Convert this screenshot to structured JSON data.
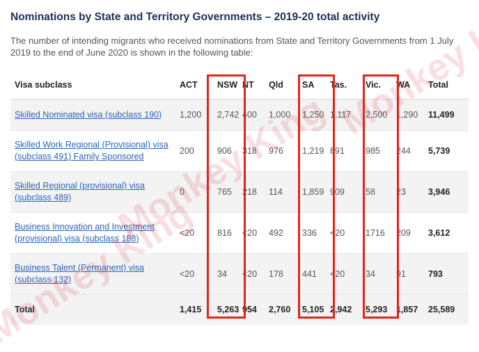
{
  "title": "Nominations by State and Territory Governments – 2019-20 total activity",
  "intro": "The number of intending migrants who received nominations from State and Territory Governments from 1 July 2019 to the end of June 2020 is shown in the following table:",
  "table": {
    "headers": {
      "visa": "Visa subclass",
      "act": "ACT",
      "nsw": "NSW",
      "nt": "NT",
      "qld": "Qld",
      "sa": "SA",
      "tas": "Tas.",
      "vic": "Vic.",
      "wa": "WA",
      "total": "Total"
    },
    "rows": [
      {
        "visa": "Skilled Nominated visa (subclass 190)",
        "act": "1,200",
        "nsw": "2,742",
        "nt": "400",
        "qld": "1,000",
        "sa": "1,250",
        "tas": "1,117",
        "vic": "2,500",
        "wa": "1,290",
        "total": "11,499"
      },
      {
        "visa": "Skilled Work Regional (Provisional) visa (subclass 491) Family Sponsored",
        "act": "200",
        "nsw": "906",
        "nt": "318",
        "qld": "976",
        "sa": "1,219",
        "tas": "891",
        "vic": "985",
        "wa": "244",
        "total": "5,739"
      },
      {
        "visa": "Skilled Regional (provisional) visa (subclass 489)",
        "act": "0",
        "nsw": "765",
        "nt": "218",
        "qld": "114",
        "sa": "1,859",
        "tas": "909",
        "vic": "58",
        "wa": "23",
        "total": "3,946"
      },
      {
        "visa": "Business Innovation and Investment (provisional) visa (subclass 188)",
        "act": "<20",
        "nsw": "816",
        "nt": "<20",
        "qld": "492",
        "sa": "336",
        "tas": "<20",
        "vic": "1716",
        "wa": "209",
        "total": "3,612"
      },
      {
        "visa": "Business Talent (Permanent) visa (subclass 132)",
        "act": "<20",
        "nsw": "34",
        "nt": "<20",
        "qld": "178",
        "sa": "441",
        "tas": "<20",
        "vic": "34",
        "wa": "91",
        "total": "793"
      }
    ],
    "total_row": {
      "label": "Total",
      "act": "1,415",
      "nsw": "5,263",
      "nt": "954",
      "qld": "2,760",
      "sa": "5,105",
      "tas": "2,942",
      "vic": "5,293",
      "wa": "1,857",
      "total": "25,589"
    }
  },
  "highlight_color": "#e3241b",
  "watermark": "Monkey King"
}
